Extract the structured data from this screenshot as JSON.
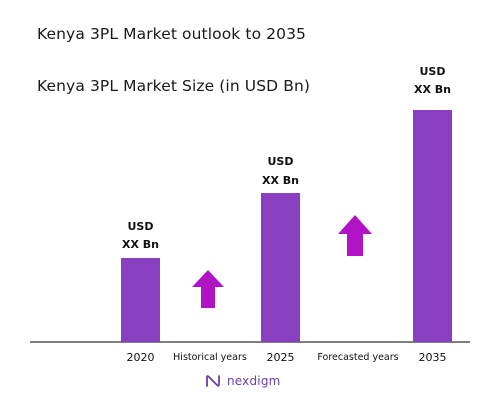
{
  "title": "Kenya 3PL Market outlook to 2035",
  "subtitle": "Kenya 3PL Market Size (in USD Bn)",
  "brand": {
    "name": "nexdigm",
    "logo_icon": "nexdigm-logo-icon"
  },
  "colors": {
    "bar": "#8a3fc0",
    "arrow": "#b014c4",
    "axis": "#333333",
    "label": "#111111"
  },
  "chart_data": {
    "type": "bar",
    "categories": [
      "2020",
      "2025",
      "2035"
    ],
    "series": [
      {
        "values": [
          1,
          1.8,
          2.8
        ]
      }
    ],
    "value_labels": [
      {
        "line1": "USD",
        "line2": "XX Bn"
      },
      {
        "line1": "USD",
        "line2": "XX Bn"
      },
      {
        "line1": "USD",
        "line2": "XX Bn"
      }
    ],
    "annotations": [
      {
        "text": "Historical years",
        "between": [
          "2020",
          "2025"
        ],
        "icon": "up-arrow-icon"
      },
      {
        "text": "Forecasted years",
        "between": [
          "2025",
          "2035"
        ],
        "icon": "up-arrow-icon"
      }
    ],
    "title": "",
    "xlabel": "",
    "ylabel": "",
    "ylim": [
      0,
      2.8
    ],
    "grid": false,
    "legend": "none"
  }
}
